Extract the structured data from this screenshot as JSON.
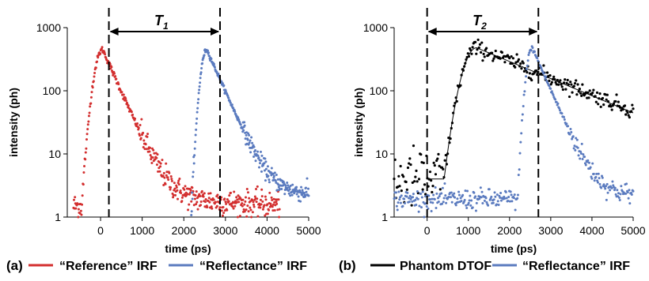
{
  "chart_data": [
    {
      "type": "scatter",
      "panel_label": "(a)",
      "xlabel": "time (ps)",
      "ylabel": "intensity (ph)",
      "xlim": [
        -800,
        5000
      ],
      "ylim": [
        1,
        1000
      ],
      "yscale": "log",
      "x_ticks": [
        "0",
        "1000",
        "2000",
        "3000",
        "4000",
        "5000"
      ],
      "y_ticks": [
        "1",
        "10",
        "100",
        "1000"
      ],
      "annotation": {
        "label": "T",
        "subscript": "1",
        "x_start": 200,
        "x_end": 2870
      },
      "series": [
        {
          "name": "“Reference” IRF",
          "color": "#d32f2f",
          "x_start": -650,
          "x_end": 4300,
          "peak_x": 50,
          "peak": 450,
          "rise": 210,
          "decay": 290,
          "background": 2.1,
          "bg_slope": 0.12,
          "lead_level": 1.5,
          "scatter": 0.1,
          "points": 440
        },
        {
          "name": "“Reflectance” IRF",
          "color": "#5b7bbf",
          "x_start": 2180,
          "x_end": 5000,
          "peak_x": 2550,
          "peak": 450,
          "rise": 150,
          "decay": 290,
          "background": 2.3,
          "bg_slope": 0,
          "lead_level": 1.1,
          "scatter": 0.07,
          "points": 300
        }
      ]
    },
    {
      "type": "scatter",
      "panel_label": "(b)",
      "xlabel": "time (ps)",
      "ylabel": "intensity (ph)",
      "xlim": [
        -800,
        5000
      ],
      "ylim": [
        1,
        1000
      ],
      "yscale": "log",
      "x_ticks": [
        "0",
        "1000",
        "2000",
        "3000",
        "4000",
        "5000"
      ],
      "y_ticks": [
        "1",
        "10",
        "100",
        "1000"
      ],
      "annotation": {
        "label": "T",
        "subscript": "2",
        "x_start": 0,
        "x_end": 2700
      },
      "series": [
        {
          "name": "Phantom DTOF",
          "color": "#000000",
          "x_start": -800,
          "x_end": 5000,
          "peak_x": 1200,
          "peak": 480,
          "rise": 360,
          "decay": 1600,
          "background": 4,
          "bg_slope": 0,
          "lead_level": 4,
          "scatter": 0.25,
          "points": 260,
          "fit_line": true
        },
        {
          "name": "“Reflectance” IRF",
          "color": "#5b7bbf",
          "x_start": -800,
          "x_end": 5000,
          "peak_x": 2550,
          "peak": 480,
          "rise": 150,
          "decay": 290,
          "background": 2.2,
          "bg_slope": 0,
          "lead_level": 1.9,
          "scatter": 0.08,
          "points": 360
        }
      ]
    }
  ]
}
